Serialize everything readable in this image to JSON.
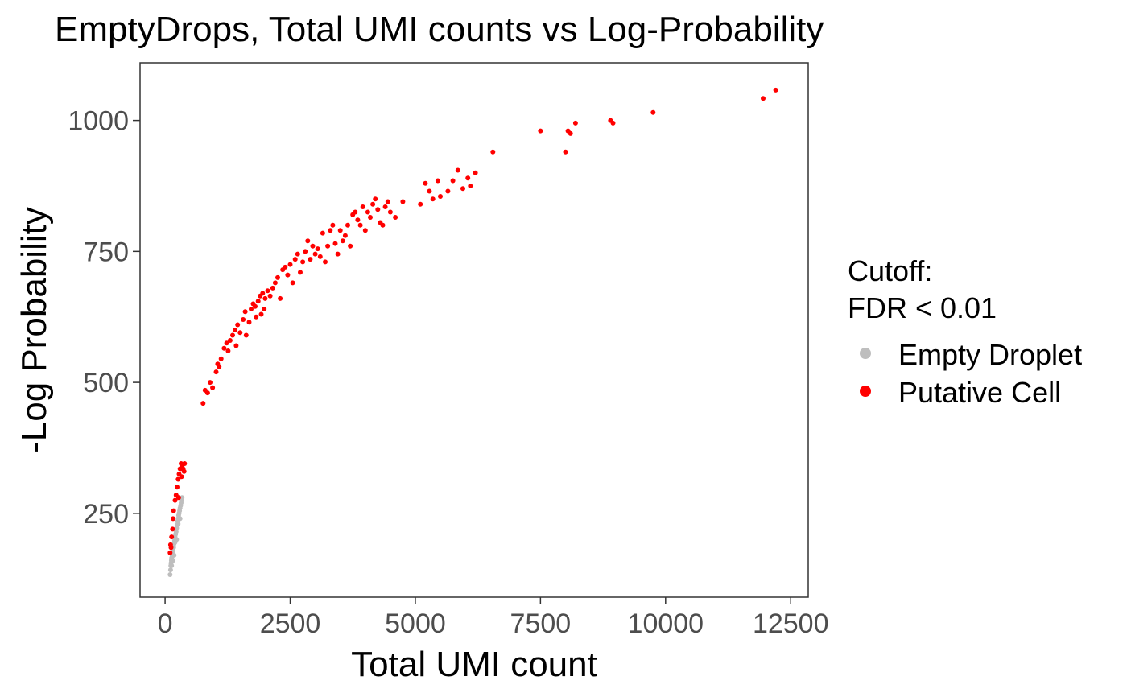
{
  "chart_data": {
    "type": "scatter",
    "title": "EmptyDrops, Total UMI counts vs Log-Probability",
    "xlabel": "Total UMI count",
    "ylabel": "-Log Probability",
    "xlim": [
      -500,
      12850
    ],
    "ylim": [
      90,
      1110
    ],
    "x_ticks": [
      0,
      2500,
      5000,
      7500,
      10000,
      12500
    ],
    "y_ticks": [
      250,
      500,
      750,
      1000
    ],
    "grid": false,
    "legend": {
      "title_line1": "Cutoff:",
      "title_line2": "FDR < 0.01",
      "placement": "right",
      "entries": [
        {
          "label": "Empty Droplet",
          "color": "#bebebe"
        },
        {
          "label": "Putative Cell",
          "color": "#ff0000"
        }
      ]
    },
    "series": [
      {
        "name": "Empty Droplet",
        "color": "#bebebe",
        "points": [
          [
            100,
            133
          ],
          [
            110,
            142
          ],
          [
            115,
            150
          ],
          [
            120,
            155
          ],
          [
            125,
            160
          ],
          [
            130,
            165
          ],
          [
            140,
            170
          ],
          [
            150,
            175
          ],
          [
            160,
            180
          ],
          [
            170,
            185
          ],
          [
            180,
            192
          ],
          [
            190,
            198
          ],
          [
            200,
            205
          ],
          [
            210,
            210
          ],
          [
            220,
            215
          ],
          [
            230,
            222
          ],
          [
            240,
            228
          ],
          [
            250,
            235
          ],
          [
            260,
            240
          ],
          [
            270,
            246
          ],
          [
            280,
            250
          ],
          [
            290,
            255
          ],
          [
            300,
            260
          ],
          [
            310,
            265
          ],
          [
            320,
            270
          ],
          [
            330,
            275
          ],
          [
            340,
            280
          ],
          [
            150,
            185
          ],
          [
            200,
            195
          ],
          [
            260,
            230
          ],
          [
            180,
            170
          ],
          [
            230,
            200
          ],
          [
            300,
            240
          ],
          [
            130,
            150
          ],
          [
            160,
            160
          ]
        ]
      },
      {
        "name": "Putative Cell",
        "color": "#ff0000",
        "points": [
          [
            100,
            175
          ],
          [
            110,
            190
          ],
          [
            130,
            205
          ],
          [
            150,
            220
          ],
          [
            160,
            240
          ],
          [
            170,
            255
          ],
          [
            200,
            275
          ],
          [
            220,
            285
          ],
          [
            240,
            300
          ],
          [
            260,
            315
          ],
          [
            280,
            325
          ],
          [
            300,
            335
          ],
          [
            320,
            345
          ],
          [
            340,
            340
          ],
          [
            360,
            335
          ],
          [
            380,
            330
          ],
          [
            390,
            345
          ],
          [
            270,
            280
          ],
          [
            330,
            320
          ],
          [
            120,
            185
          ],
          [
            760,
            460
          ],
          [
            800,
            485
          ],
          [
            850,
            480
          ],
          [
            900,
            500
          ],
          [
            950,
            490
          ],
          [
            1020,
            520
          ],
          [
            1050,
            535
          ],
          [
            1080,
            530
          ],
          [
            1120,
            545
          ],
          [
            1180,
            565
          ],
          [
            1230,
            575
          ],
          [
            1260,
            560
          ],
          [
            1300,
            580
          ],
          [
            1350,
            590
          ],
          [
            1400,
            600
          ],
          [
            1420,
            570
          ],
          [
            1450,
            610
          ],
          [
            1500,
            595
          ],
          [
            1560,
            620
          ],
          [
            1600,
            635
          ],
          [
            1620,
            590
          ],
          [
            1680,
            615
          ],
          [
            1720,
            640
          ],
          [
            1760,
            650
          ],
          [
            1800,
            645
          ],
          [
            1820,
            625
          ],
          [
            1860,
            655
          ],
          [
            1900,
            665
          ],
          [
            1920,
            630
          ],
          [
            1950,
            670
          ],
          [
            1980,
            640
          ],
          [
            2000,
            660
          ],
          [
            2050,
            675
          ],
          [
            2100,
            665
          ],
          [
            2150,
            680
          ],
          [
            2200,
            690
          ],
          [
            2250,
            700
          ],
          [
            2300,
            660
          ],
          [
            2350,
            715
          ],
          [
            2400,
            720
          ],
          [
            2450,
            705
          ],
          [
            2500,
            725
          ],
          [
            2550,
            690
          ],
          [
            2600,
            735
          ],
          [
            2650,
            745
          ],
          [
            2700,
            710
          ],
          [
            2750,
            730
          ],
          [
            2800,
            750
          ],
          [
            2850,
            770
          ],
          [
            2900,
            735
          ],
          [
            2950,
            760
          ],
          [
            3000,
            745
          ],
          [
            3050,
            755
          ],
          [
            3100,
            740
          ],
          [
            3150,
            785
          ],
          [
            3200,
            730
          ],
          [
            3250,
            760
          ],
          [
            3300,
            790
          ],
          [
            3350,
            800
          ],
          [
            3400,
            765
          ],
          [
            3450,
            745
          ],
          [
            3500,
            790
          ],
          [
            3550,
            770
          ],
          [
            3600,
            780
          ],
          [
            3650,
            800
          ],
          [
            3700,
            760
          ],
          [
            3750,
            820
          ],
          [
            3800,
            825
          ],
          [
            3850,
            810
          ],
          [
            3900,
            800
          ],
          [
            3950,
            835
          ],
          [
            4000,
            790
          ],
          [
            4050,
            825
          ],
          [
            4100,
            815
          ],
          [
            4150,
            840
          ],
          [
            4200,
            850
          ],
          [
            4250,
            830
          ],
          [
            4300,
            805
          ],
          [
            4350,
            800
          ],
          [
            4400,
            835
          ],
          [
            4450,
            845
          ],
          [
            4500,
            825
          ],
          [
            4600,
            815
          ],
          [
            4750,
            845
          ],
          [
            5100,
            840
          ],
          [
            5200,
            880
          ],
          [
            5280,
            865
          ],
          [
            5350,
            850
          ],
          [
            5450,
            885
          ],
          [
            5500,
            855
          ],
          [
            5650,
            865
          ],
          [
            5750,
            885
          ],
          [
            5850,
            905
          ],
          [
            5950,
            870
          ],
          [
            6050,
            890
          ],
          [
            6100,
            875
          ],
          [
            6200,
            900
          ],
          [
            6550,
            940
          ],
          [
            7500,
            980
          ],
          [
            8000,
            940
          ],
          [
            8050,
            980
          ],
          [
            8100,
            975
          ],
          [
            8200,
            995
          ],
          [
            8900,
            1000
          ],
          [
            8950,
            995
          ],
          [
            9750,
            1015
          ],
          [
            11950,
            1042
          ],
          [
            12200,
            1058
          ]
        ]
      }
    ]
  }
}
